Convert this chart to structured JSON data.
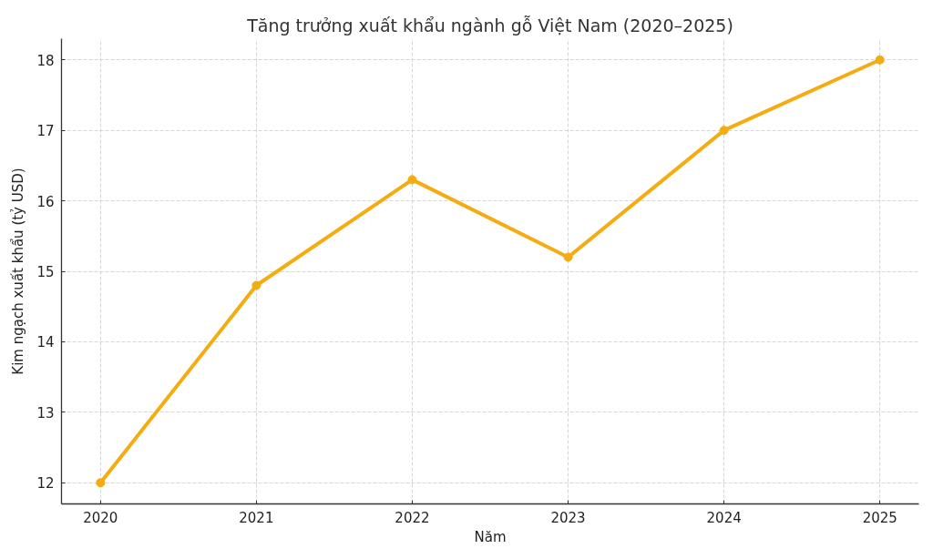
{
  "chart_data": {
    "type": "line",
    "title": "Tăng trưởng xuất khẩu ngành gỗ Việt Nam (2020–2025)",
    "xlabel": "Năm",
    "ylabel": "Kim ngạch xuất khẩu (tỷ USD)",
    "x": [
      2020,
      2021,
      2022,
      2023,
      2024,
      2025
    ],
    "series": [
      {
        "color": "#f4ac10",
        "values": [
          12,
          14.8,
          16.3,
          15.2,
          17,
          18
        ]
      }
    ],
    "xlim": [
      2019.75,
      2025.25
    ],
    "ylim": [
      11.7,
      18.3
    ],
    "xticks": [
      2020,
      2021,
      2022,
      2023,
      2024,
      2025
    ],
    "yticks": [
      12,
      13,
      14,
      15,
      16,
      17,
      18
    ],
    "grid": true,
    "marker": "circle",
    "line_style": "solid"
  }
}
